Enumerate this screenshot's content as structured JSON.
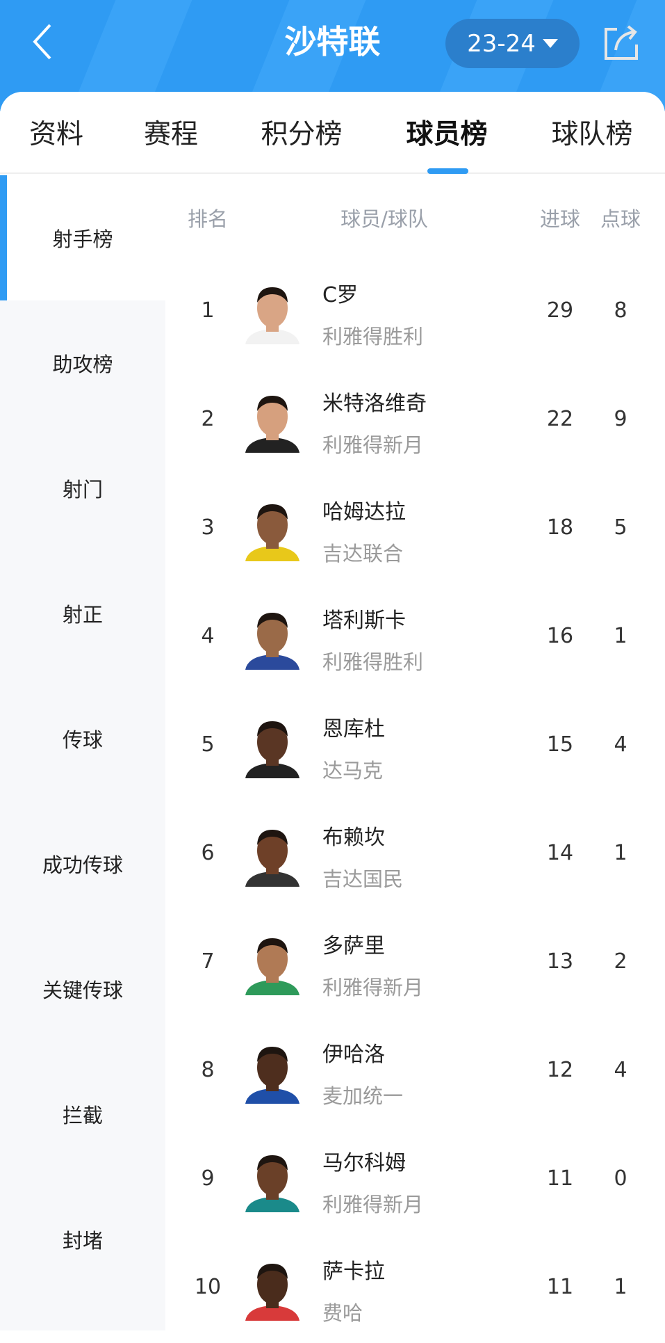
{
  "header": {
    "title": "沙特联",
    "season": "23-24",
    "icons": [
      "chevron-left-icon",
      "share-icon",
      "caret-down-icon"
    ]
  },
  "tabs": [
    {
      "label": "资料"
    },
    {
      "label": "赛程"
    },
    {
      "label": "积分榜"
    },
    {
      "label": "球员榜",
      "active": true
    },
    {
      "label": "球队榜"
    }
  ],
  "sidebar": {
    "items": [
      {
        "label": "射手榜",
        "active": true
      },
      {
        "label": "助攻榜"
      },
      {
        "label": "射门"
      },
      {
        "label": "射正"
      },
      {
        "label": "传球"
      },
      {
        "label": "成功传球"
      },
      {
        "label": "关键传球"
      },
      {
        "label": "拦截"
      },
      {
        "label": "封堵"
      }
    ]
  },
  "table": {
    "columns": {
      "rank": "排名",
      "player": "球员/球队",
      "goals": "进球",
      "penalties": "点球"
    },
    "rows": [
      {
        "rank": "1",
        "name": "C罗",
        "team": "利雅得胜利",
        "goals": "29",
        "penalties": "8",
        "skin": "#d9a585",
        "shirt": "#f2f2f2"
      },
      {
        "rank": "2",
        "name": "米特洛维奇",
        "team": "利雅得新月",
        "goals": "22",
        "penalties": "9",
        "skin": "#d6a07e",
        "shirt": "#222"
      },
      {
        "rank": "3",
        "name": "哈姆达拉",
        "team": "吉达联合",
        "goals": "18",
        "penalties": "5",
        "skin": "#8a5a3c",
        "shirt": "#e8c81a"
      },
      {
        "rank": "4",
        "name": "塔利斯卡",
        "team": "利雅得胜利",
        "goals": "16",
        "penalties": "1",
        "skin": "#9a6a48",
        "shirt": "#2b4a9c"
      },
      {
        "rank": "5",
        "name": "恩库杜",
        "team": "达马克",
        "goals": "15",
        "penalties": "4",
        "skin": "#5a3624",
        "shirt": "#222"
      },
      {
        "rank": "6",
        "name": "布赖坎",
        "team": "吉达国民",
        "goals": "14",
        "penalties": "1",
        "skin": "#6e4028",
        "shirt": "#333"
      },
      {
        "rank": "7",
        "name": "多萨里",
        "team": "利雅得新月",
        "goals": "13",
        "penalties": "2",
        "skin": "#b07a55",
        "shirt": "#2e9a5a"
      },
      {
        "rank": "8",
        "name": "伊哈洛",
        "team": "麦加统一",
        "goals": "12",
        "penalties": "4",
        "skin": "#4e2e1e",
        "shirt": "#1f4fa8"
      },
      {
        "rank": "9",
        "name": "马尔科姆",
        "team": "利雅得新月",
        "goals": "11",
        "penalties": "0",
        "skin": "#6a4028",
        "shirt": "#1a8a8a"
      },
      {
        "rank": "10",
        "name": "萨卡拉",
        "team": "费哈",
        "goals": "11",
        "penalties": "1",
        "skin": "#4a2c1c",
        "shirt": "#d83a3a"
      }
    ]
  },
  "colors": {
    "accent": "#2f9bf3",
    "header_bg": "#2f9bf3",
    "sidebar_bg": "#f7f8fa"
  }
}
